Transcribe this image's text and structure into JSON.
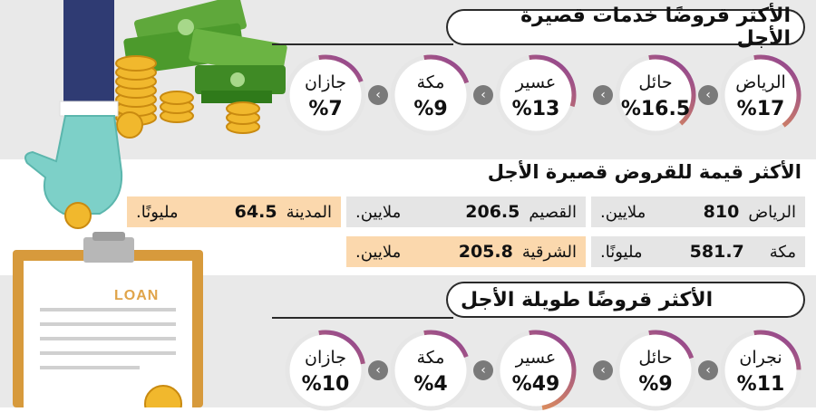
{
  "colors": {
    "accent_orange": "#f4a54c",
    "accent_purple": "#8a3d96",
    "box_orange": "#fbd8ad",
    "box_grey": "#e5e5e5"
  },
  "section1": {
    "title": "الأكثر قروضًا خدمات قصيرة الأجل",
    "items": [
      {
        "city": "الرياض",
        "pct": "%17",
        "value": 17
      },
      {
        "city": "حائل",
        "pct": "%16.5",
        "value": 16.5
      },
      {
        "city": "عسير",
        "pct": "%13",
        "value": 13
      },
      {
        "city": "مكة",
        "pct": "%9",
        "value": 9
      },
      {
        "city": "جازان",
        "pct": "%7",
        "value": 7
      }
    ]
  },
  "section2": {
    "title": "الأكثر قيمة للقروض قصيرة الأجل",
    "rows": [
      [
        {
          "region": "الرياض",
          "amount": "810",
          "unit": "ملايين."
        },
        {
          "region": "القصيم",
          "amount": "206.5",
          "unit": "ملايين."
        },
        {
          "region": "المدينة",
          "amount": "64.5",
          "unit": "مليونًا."
        }
      ],
      [
        {
          "region": "مكة",
          "amount": "581.7",
          "unit": "مليونًا."
        },
        {
          "region": "الشرقية",
          "amount": "205.8",
          "unit": "ملايين."
        }
      ]
    ]
  },
  "section3": {
    "title": "الأكثر قروضًا طويلة الأجل",
    "items": [
      {
        "city": "نجران",
        "pct": "%11",
        "value": 11
      },
      {
        "city": "حائل",
        "pct": "%9",
        "value": 9
      },
      {
        "city": "عسير",
        "pct": "%49",
        "value": 49
      },
      {
        "city": "مكة",
        "pct": "%4",
        "value": 4
      },
      {
        "city": "جازان",
        "pct": "%10",
        "value": 10
      }
    ]
  },
  "illustration": {
    "loan_label": "LOAN",
    "currency_symbol": "﷼"
  }
}
